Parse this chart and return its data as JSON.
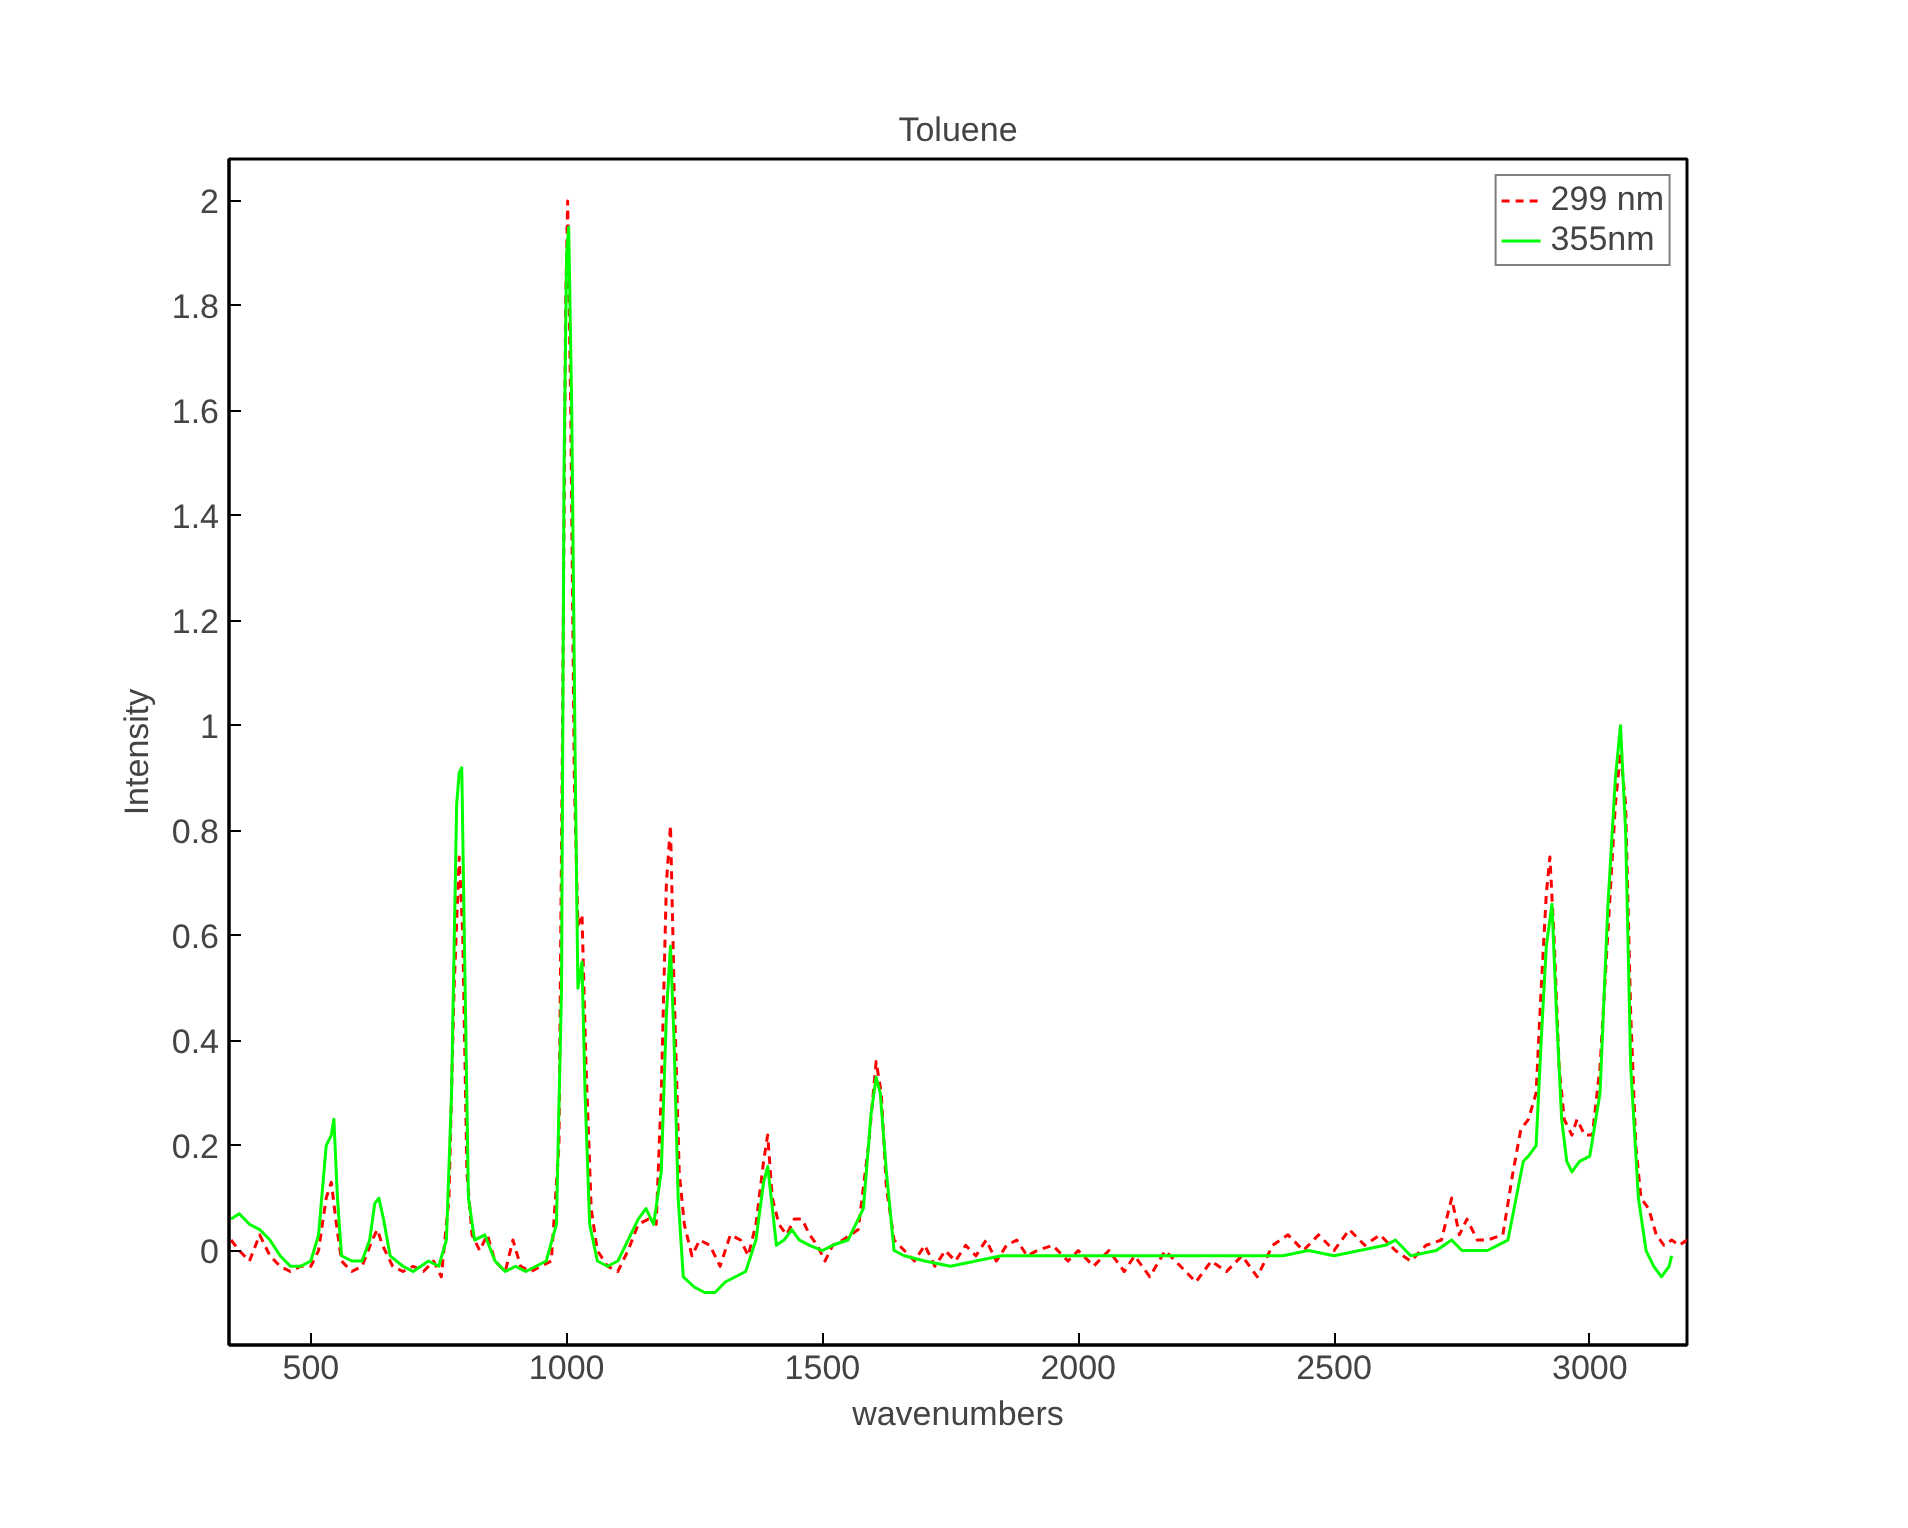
{
  "chart_data": {
    "type": "line",
    "title": "Toluene",
    "xlabel": "wavenumbers",
    "ylabel": "Intensity",
    "xlim": [
      340,
      3190
    ],
    "xticks": [
      500,
      1000,
      1500,
      2000,
      2500,
      3000
    ],
    "ylim": [
      -0.18,
      2.08
    ],
    "yticks": [
      0,
      0.2,
      0.4,
      0.6,
      0.8,
      1,
      1.2,
      1.4,
      1.6,
      1.8,
      2
    ],
    "grid": false,
    "legend": "top right",
    "marker": "none",
    "series": [
      {
        "name": "299 nm",
        "color": "#ff0000",
        "line_style": "dashed",
        "x": [
          344,
          360,
          380,
          400,
          420,
          440,
          460,
          480,
          500,
          515,
          530,
          540,
          550,
          560,
          580,
          600,
          620,
          630,
          640,
          660,
          680,
          700,
          720,
          740,
          755,
          770,
          780,
          790,
          797,
          805,
          815,
          830,
          845,
          860,
          880,
          895,
          910,
          930,
          950,
          970,
          985,
          992,
          998,
          1002,
          1008,
          1015,
          1022,
          1030,
          1038,
          1048,
          1060,
          1080,
          1100,
          1120,
          1140,
          1160,
          1175,
          1185,
          1195,
          1203,
          1210,
          1220,
          1230,
          1245,
          1260,
          1280,
          1300,
          1320,
          1340,
          1355,
          1370,
          1385,
          1393,
          1402,
          1415,
          1430,
          1445,
          1460,
          1475,
          1490,
          1505,
          1520,
          1540,
          1570,
          1590,
          1605,
          1615,
          1625,
          1640,
          1660,
          1680,
          1700,
          1720,
          1740,
          1760,
          1780,
          1800,
          1820,
          1840,
          1860,
          1880,
          1900,
          1920,
          1950,
          1980,
          2000,
          2030,
          2060,
          2090,
          2110,
          2140,
          2170,
          2200,
          2230,
          2260,
          2290,
          2320,
          2350,
          2380,
          2410,
          2440,
          2470,
          2500,
          2530,
          2560,
          2590,
          2620,
          2650,
          2680,
          2710,
          2730,
          2745,
          2760,
          2780,
          2800,
          2830,
          2850,
          2865,
          2880,
          2895,
          2905,
          2915,
          2922,
          2930,
          2940,
          2950,
          2965,
          2975,
          2990,
          3005,
          3020,
          3035,
          3050,
          3060,
          3070,
          3080,
          3090,
          3100,
          3115,
          3130,
          3145,
          3160,
          3175,
          3190
        ],
        "values": [
          0.02,
          0.0,
          -0.02,
          0.03,
          -0.01,
          -0.03,
          -0.04,
          -0.03,
          -0.03,
          0.0,
          0.1,
          0.13,
          0.05,
          -0.02,
          -0.04,
          -0.03,
          0.02,
          0.04,
          0.01,
          -0.03,
          -0.04,
          -0.03,
          -0.04,
          -0.02,
          -0.05,
          0.1,
          0.5,
          0.75,
          0.6,
          0.15,
          0.03,
          0.0,
          0.03,
          -0.02,
          -0.04,
          0.02,
          -0.03,
          -0.04,
          -0.03,
          -0.02,
          0.2,
          1.0,
          1.8,
          2.0,
          1.6,
          0.9,
          0.62,
          0.64,
          0.35,
          0.08,
          0.0,
          -0.03,
          -0.04,
          0.0,
          0.05,
          0.06,
          0.05,
          0.3,
          0.7,
          0.81,
          0.5,
          0.15,
          0.05,
          -0.01,
          0.02,
          0.01,
          -0.03,
          0.03,
          0.02,
          -0.01,
          0.05,
          0.17,
          0.22,
          0.1,
          0.05,
          0.03,
          0.06,
          0.06,
          0.03,
          0.01,
          -0.02,
          0.01,
          0.02,
          0.04,
          0.2,
          0.36,
          0.3,
          0.12,
          0.02,
          0.0,
          -0.02,
          0.01,
          -0.03,
          0.0,
          -0.02,
          0.01,
          -0.01,
          0.02,
          -0.02,
          0.01,
          0.02,
          -0.01,
          0.0,
          0.01,
          -0.02,
          0.0,
          -0.03,
          0.0,
          -0.04,
          -0.01,
          -0.05,
          0.0,
          -0.03,
          -0.06,
          -0.02,
          -0.04,
          -0.01,
          -0.05,
          0.01,
          0.03,
          0.0,
          0.03,
          0.0,
          0.04,
          0.01,
          0.03,
          0.0,
          -0.02,
          0.01,
          0.02,
          0.1,
          0.03,
          0.06,
          0.02,
          0.02,
          0.03,
          0.15,
          0.23,
          0.25,
          0.3,
          0.5,
          0.68,
          0.75,
          0.6,
          0.35,
          0.25,
          0.22,
          0.25,
          0.22,
          0.22,
          0.35,
          0.6,
          0.85,
          0.95,
          0.85,
          0.45,
          0.2,
          0.1,
          0.08,
          0.03,
          0.01,
          0.02,
          0.01,
          0.02
        ]
      },
      {
        "name": "355nm",
        "color": "#00ff00",
        "line_style": "solid",
        "x": [
          344,
          360,
          380,
          400,
          420,
          440,
          460,
          480,
          500,
          515,
          530,
          540,
          545,
          552,
          560,
          580,
          600,
          615,
          625,
          633,
          642,
          655,
          680,
          700,
          730,
          750,
          765,
          775,
          785,
          790,
          795,
          800,
          808,
          820,
          840,
          860,
          880,
          900,
          920,
          940,
          960,
          980,
          990,
          995,
          1000,
          1004,
          1010,
          1017,
          1022,
          1030,
          1036,
          1045,
          1060,
          1080,
          1100,
          1120,
          1140,
          1155,
          1170,
          1185,
          1195,
          1203,
          1210,
          1218,
          1228,
          1250,
          1270,
          1290,
          1310,
          1330,
          1350,
          1370,
          1385,
          1393,
          1400,
          1410,
          1425,
          1440,
          1455,
          1475,
          1500,
          1520,
          1550,
          1580,
          1595,
          1605,
          1613,
          1625,
          1640,
          1660,
          1700,
          1750,
          1800,
          1850,
          1900,
          1950,
          2000,
          2100,
          2200,
          2300,
          2400,
          2450,
          2500,
          2550,
          2600,
          2620,
          2650,
          2700,
          2730,
          2750,
          2800,
          2840,
          2860,
          2870,
          2880,
          2895,
          2905,
          2915,
          2926,
          2935,
          2945,
          2955,
          2965,
          2980,
          3000,
          3020,
          3035,
          3050,
          3060,
          3070,
          3080,
          3095,
          3110,
          3125,
          3140,
          3155,
          3160
        ],
        "values": [
          0.06,
          0.07,
          0.05,
          0.04,
          0.02,
          -0.01,
          -0.03,
          -0.03,
          -0.02,
          0.03,
          0.2,
          0.22,
          0.25,
          0.1,
          -0.01,
          -0.02,
          -0.02,
          0.02,
          0.09,
          0.1,
          0.06,
          -0.01,
          -0.03,
          -0.04,
          -0.02,
          -0.03,
          0.02,
          0.3,
          0.85,
          0.91,
          0.92,
          0.6,
          0.1,
          0.02,
          0.03,
          -0.02,
          -0.04,
          -0.03,
          -0.04,
          -0.03,
          -0.02,
          0.05,
          0.5,
          1.5,
          1.9,
          1.95,
          1.6,
          0.9,
          0.5,
          0.55,
          0.3,
          0.05,
          -0.02,
          -0.03,
          -0.02,
          0.02,
          0.06,
          0.08,
          0.05,
          0.15,
          0.45,
          0.58,
          0.4,
          0.1,
          -0.05,
          -0.07,
          -0.08,
          -0.08,
          -0.06,
          -0.05,
          -0.04,
          0.02,
          0.13,
          0.16,
          0.1,
          0.01,
          0.02,
          0.04,
          0.02,
          0.01,
          0.0,
          0.01,
          0.02,
          0.08,
          0.26,
          0.33,
          0.3,
          0.15,
          0.0,
          -0.01,
          -0.02,
          -0.03,
          -0.02,
          -0.01,
          -0.01,
          -0.01,
          -0.01,
          -0.01,
          -0.01,
          -0.01,
          -0.01,
          0.0,
          -0.01,
          0.0,
          0.01,
          0.02,
          -0.01,
          0.0,
          0.02,
          0.0,
          0.0,
          0.02,
          0.12,
          0.17,
          0.18,
          0.2,
          0.4,
          0.58,
          0.66,
          0.45,
          0.25,
          0.17,
          0.15,
          0.17,
          0.18,
          0.3,
          0.65,
          0.9,
          1.0,
          0.8,
          0.35,
          0.1,
          0.0,
          -0.03,
          -0.05,
          -0.03,
          -0.01
        ]
      }
    ]
  }
}
